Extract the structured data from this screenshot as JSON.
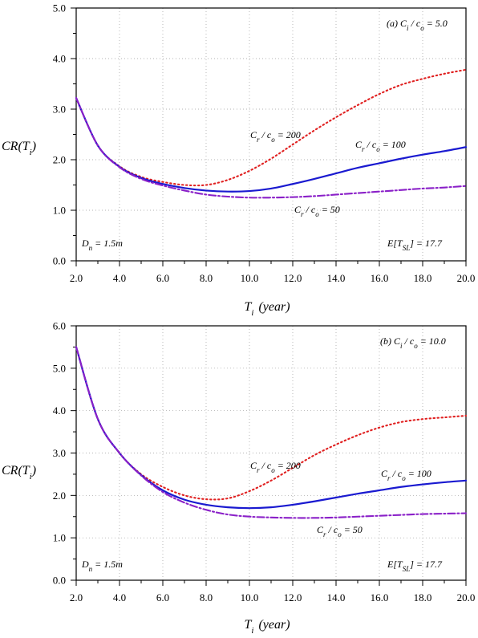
{
  "chart_data": [
    {
      "type": "line",
      "panel": "(a)",
      "xlabel": "T_i (year)",
      "ylabel": "CR(T_i)",
      "xlim": [
        2.0,
        20.0
      ],
      "ylim": [
        0.0,
        5.0
      ],
      "x_ticks": [
        "2.0",
        "4.0",
        "6.0",
        "8.0",
        "10.0",
        "12.0",
        "14.0",
        "16.0",
        "18.0",
        "20.0"
      ],
      "y_ticks": [
        "0.0",
        "1.0",
        "2.0",
        "3.0",
        "4.0",
        "5.0"
      ],
      "grid": true,
      "annotations": {
        "ratio": "(a)  C_i / c_o = 5.0",
        "dn": "D_n = 1.5m",
        "etsl": "E[T_SL] = 17.7"
      },
      "x": [
        2,
        3,
        4,
        5,
        6,
        7,
        8,
        9,
        10,
        11,
        12,
        13,
        14,
        15,
        16,
        17,
        18,
        19,
        20
      ],
      "series": [
        {
          "name": "C_r / c_o = 200",
          "color": "#e02020",
          "style": "dotted",
          "values": [
            3.22,
            2.28,
            1.87,
            1.66,
            1.56,
            1.5,
            1.5,
            1.6,
            1.78,
            2.02,
            2.3,
            2.58,
            2.84,
            3.08,
            3.3,
            3.48,
            3.6,
            3.7,
            3.78
          ]
        },
        {
          "name": "C_r / c_o = 100",
          "color": "#1a1ad0",
          "style": "solid",
          "values": [
            3.22,
            2.28,
            1.86,
            1.64,
            1.52,
            1.44,
            1.39,
            1.37,
            1.38,
            1.43,
            1.52,
            1.62,
            1.73,
            1.84,
            1.93,
            2.02,
            2.1,
            2.17,
            2.25
          ]
        },
        {
          "name": "C_r / c_o = 50",
          "color": "#8a20c8",
          "style": "dashdot",
          "values": [
            3.22,
            2.28,
            1.85,
            1.62,
            1.49,
            1.39,
            1.31,
            1.27,
            1.25,
            1.25,
            1.26,
            1.28,
            1.31,
            1.34,
            1.37,
            1.4,
            1.43,
            1.45,
            1.48
          ]
        }
      ],
      "labels": [
        "C_r / c_o = 200",
        "C_r / c_o = 100",
        "C_r / c_o = 50"
      ]
    },
    {
      "type": "line",
      "panel": "(b)",
      "xlabel": "T_i (year)",
      "ylabel": "CR(T_i)",
      "xlim": [
        2.0,
        20.0
      ],
      "ylim": [
        0.0,
        6.0
      ],
      "x_ticks": [
        "2.0",
        "4.0",
        "6.0",
        "8.0",
        "10.0",
        "12.0",
        "14.0",
        "16.0",
        "18.0",
        "20.0"
      ],
      "y_ticks": [
        "0.0",
        "1.0",
        "2.0",
        "3.0",
        "4.0",
        "5.0",
        "6.0"
      ],
      "grid": true,
      "annotations": {
        "ratio": "(b)  C_i / c_o = 10.0",
        "dn": "D_n = 1.5m",
        "etsl": "E[T_SL] = 17.7"
      },
      "x": [
        2,
        3,
        4,
        5,
        6,
        7,
        8,
        9,
        10,
        11,
        12,
        13,
        14,
        15,
        16,
        17,
        18,
        19,
        20
      ],
      "series": [
        {
          "name": "C_r / c_o = 200",
          "color": "#e02020",
          "style": "dotted",
          "values": [
            5.5,
            3.8,
            3.0,
            2.5,
            2.2,
            2.0,
            1.91,
            1.93,
            2.1,
            2.35,
            2.65,
            2.95,
            3.2,
            3.42,
            3.6,
            3.73,
            3.8,
            3.84,
            3.88
          ]
        },
        {
          "name": "C_r / c_o = 100",
          "color": "#1a1ad0",
          "style": "solid",
          "values": [
            5.5,
            3.8,
            3.0,
            2.48,
            2.12,
            1.9,
            1.78,
            1.72,
            1.7,
            1.72,
            1.78,
            1.86,
            1.95,
            2.04,
            2.12,
            2.2,
            2.26,
            2.31,
            2.35
          ]
        },
        {
          "name": "C_r / c_o = 50",
          "color": "#8a20c8",
          "style": "dashdot",
          "values": [
            5.5,
            3.8,
            3.0,
            2.47,
            2.08,
            1.83,
            1.66,
            1.55,
            1.5,
            1.48,
            1.47,
            1.47,
            1.48,
            1.5,
            1.52,
            1.54,
            1.56,
            1.57,
            1.58
          ]
        }
      ],
      "labels": [
        "C_r / c_o = 200",
        "C_r / c_o = 100",
        "C_r / c_o = 50"
      ]
    }
  ]
}
